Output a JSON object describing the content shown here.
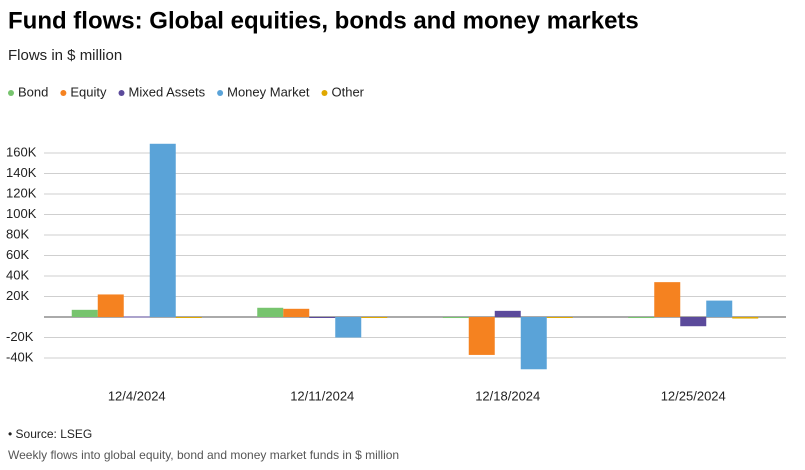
{
  "chart_data": {
    "type": "bar",
    "title": "Fund flows: Global equities, bonds and money markets",
    "subtitle": "Flows in $ million",
    "categories": [
      "12/4/2024",
      "12/11/2024",
      "12/18/2024",
      "12/25/2024"
    ],
    "series": [
      {
        "name": "Bond",
        "color": "#77c46e",
        "values": [
          7000,
          9000,
          -1000,
          -1000
        ]
      },
      {
        "name": "Equity",
        "color": "#f58220",
        "values": [
          22000,
          8000,
          -37000,
          34000
        ]
      },
      {
        "name": "Mixed Assets",
        "color": "#5b4a9b",
        "values": [
          500,
          0,
          6000,
          -9000
        ]
      },
      {
        "name": "Money Market",
        "color": "#5aa3d8",
        "values": [
          169000,
          -20000,
          -51000,
          16000
        ]
      },
      {
        "name": "Other",
        "color": "#e0a800",
        "values": [
          -500,
          0,
          0,
          -1500
        ]
      }
    ],
    "ylim": [
      -60000,
      180000
    ],
    "yticks": [
      {
        "value": -40000,
        "label": "-40K"
      },
      {
        "value": -20000,
        "label": "-20K"
      },
      {
        "value": 20000,
        "label": "20K"
      },
      {
        "value": 40000,
        "label": "40K"
      },
      {
        "value": 60000,
        "label": "60K"
      },
      {
        "value": 80000,
        "label": "80K"
      },
      {
        "value": 100000,
        "label": "100K"
      },
      {
        "value": 120000,
        "label": "120K"
      },
      {
        "value": 140000,
        "label": "140K"
      },
      {
        "value": 160000,
        "label": "160K"
      }
    ],
    "grid": true,
    "source": "• Source: LSEG",
    "note": "Weekly flows into global equity, bond and money market funds in $ million"
  }
}
